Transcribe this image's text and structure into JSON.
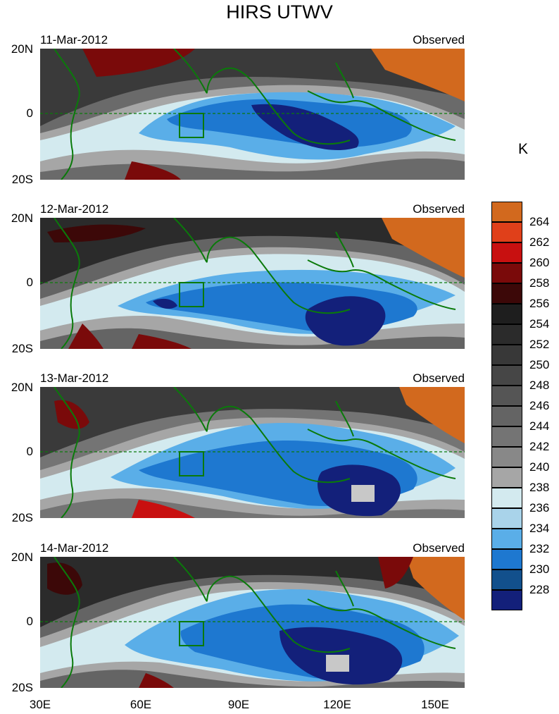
{
  "title": "HIRS UTWV",
  "units": "K",
  "panels": [
    {
      "date": "11-Mar-2012",
      "label": "Observed"
    },
    {
      "date": "12-Mar-2012",
      "label": "Observed"
    },
    {
      "date": "13-Mar-2012",
      "label": "Observed"
    },
    {
      "date": "14-Mar-2012",
      "label": "Observed"
    }
  ],
  "lat_labels": [
    "20N",
    "0",
    "20S"
  ],
  "lon_labels": [
    "30E",
    "60E",
    "90E",
    "120E",
    "150E"
  ],
  "colorbar": {
    "labels": [
      "264",
      "262",
      "260",
      "258",
      "256",
      "254",
      "252",
      "250",
      "248",
      "246",
      "244",
      "242",
      "240",
      "238",
      "236",
      "234",
      "232",
      "230",
      "228"
    ],
    "colors": [
      "#d2691e",
      "#e0401a",
      "#c81010",
      "#7a0a0a",
      "#3c0808",
      "#1e1e1e",
      "#2b2b2b",
      "#383838",
      "#464646",
      "#555555",
      "#646464",
      "#747474",
      "#888888",
      "#a6a6a6",
      "#d3eaef",
      "#a9d3ea",
      "#5aaee8",
      "#1e78d0",
      "#12508c",
      "#13207a"
    ]
  },
  "coastline_color": "#0a7a0a"
}
